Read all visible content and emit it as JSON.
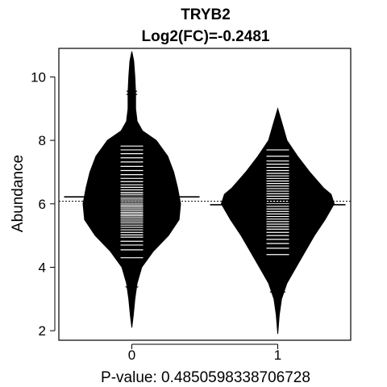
{
  "chart_data": {
    "type": "beanplot",
    "title": "TRYB2",
    "subtitle": "Log2(FC)=-0.2481",
    "xlabel": "P-value: 0.4850598338706728",
    "ylabel": "Abundance",
    "categories": [
      "0",
      "1"
    ],
    "xlim": [
      -0.5,
      1.5
    ],
    "ylim": [
      1.7,
      10.9
    ],
    "yticks": [
      2,
      4,
      6,
      8,
      10
    ],
    "overall_mean": 6.08,
    "beans": [
      {
        "category": "0",
        "mean": 6.22,
        "min": 2.1,
        "max": 10.8,
        "density": [
          [
            2.1,
            0
          ],
          [
            2.5,
            2
          ],
          [
            3.0,
            4
          ],
          [
            3.5,
            7
          ],
          [
            4.0,
            13
          ],
          [
            4.5,
            28
          ],
          [
            5.0,
            48
          ],
          [
            5.5,
            62
          ],
          [
            6.0,
            64
          ],
          [
            6.5,
            60
          ],
          [
            7.0,
            55
          ],
          [
            7.5,
            47
          ],
          [
            8.0,
            32
          ],
          [
            8.3,
            14
          ],
          [
            8.6,
            7
          ],
          [
            9.0,
            5
          ],
          [
            9.5,
            5
          ],
          [
            10.0,
            4
          ],
          [
            10.5,
            2.5
          ],
          [
            10.8,
            0
          ]
        ],
        "observations": [
          3.38,
          4.3,
          4.55,
          4.7,
          4.82,
          4.95,
          5.02,
          5.1,
          5.18,
          5.26,
          5.33,
          5.4,
          5.46,
          5.52,
          5.58,
          5.63,
          5.68,
          5.73,
          5.78,
          5.84,
          5.9,
          5.95,
          6.0,
          6.06,
          6.12,
          6.18,
          6.24,
          6.3,
          6.36,
          6.44,
          6.52,
          6.6,
          6.7,
          6.8,
          6.92,
          7.05,
          7.18,
          7.32,
          7.45,
          7.58,
          7.7,
          7.82,
          9.45,
          9.55
        ]
      },
      {
        "category": "1",
        "mean": 5.97,
        "min": 1.9,
        "max": 9.0,
        "density": [
          [
            1.9,
            0
          ],
          [
            2.5,
            2
          ],
          [
            3.0,
            5
          ],
          [
            3.5,
            12
          ],
          [
            4.0,
            24
          ],
          [
            4.5,
            36
          ],
          [
            5.0,
            48
          ],
          [
            5.5,
            62
          ],
          [
            6.0,
            74
          ],
          [
            6.3,
            70
          ],
          [
            6.5,
            60
          ],
          [
            7.0,
            42
          ],
          [
            7.5,
            26
          ],
          [
            8.0,
            12
          ],
          [
            8.5,
            6
          ],
          [
            9.0,
            0
          ]
        ],
        "observations": [
          3.22,
          4.4,
          4.6,
          4.75,
          4.88,
          5.0,
          5.1,
          5.2,
          5.28,
          5.36,
          5.44,
          5.52,
          5.6,
          5.68,
          5.76,
          5.84,
          5.92,
          6.0,
          6.08,
          6.16,
          6.24,
          6.32,
          6.4,
          6.48,
          6.56,
          6.64,
          6.72,
          6.8,
          6.88,
          6.96,
          7.05,
          7.15,
          7.25,
          7.35,
          7.5,
          7.7
        ]
      }
    ],
    "grid": false,
    "legend": "none"
  }
}
